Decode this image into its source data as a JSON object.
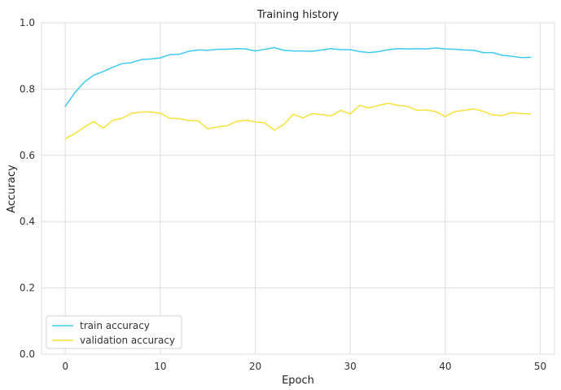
{
  "chart_data": {
    "type": "line",
    "title": "Training history",
    "xlabel": "Epoch",
    "ylabel": "Accuracy",
    "xlim": [
      -2.5,
      51.5
    ],
    "ylim": [
      0,
      1
    ],
    "xticks": [
      0,
      10,
      20,
      30,
      40,
      50
    ],
    "yticks": [
      0.0,
      0.2,
      0.4,
      0.6,
      0.8,
      1.0
    ],
    "ytick_labels": [
      "0.0",
      "0.2",
      "0.4",
      "0.6",
      "0.8",
      "1.0"
    ],
    "grid": true,
    "legend_position": "bottom-left",
    "x": [
      0,
      1,
      2,
      3,
      4,
      5,
      6,
      7,
      8,
      9,
      10,
      11,
      12,
      13,
      14,
      15,
      16,
      17,
      18,
      19,
      20,
      21,
      22,
      23,
      24,
      25,
      26,
      27,
      28,
      29,
      30,
      31,
      32,
      33,
      34,
      35,
      36,
      37,
      38,
      39,
      40,
      41,
      42,
      43,
      44,
      45,
      46,
      47,
      48,
      49
    ],
    "series": [
      {
        "name": "train accuracy",
        "color": "#3fcaf2",
        "values": [
          0.748,
          0.789,
          0.821,
          0.842,
          0.853,
          0.866,
          0.877,
          0.88,
          0.889,
          0.891,
          0.894,
          0.904,
          0.905,
          0.914,
          0.918,
          0.917,
          0.92,
          0.92,
          0.922,
          0.921,
          0.915,
          0.92,
          0.925,
          0.917,
          0.915,
          0.915,
          0.914,
          0.918,
          0.922,
          0.919,
          0.919,
          0.913,
          0.91,
          0.913,
          0.919,
          0.922,
          0.921,
          0.922,
          0.921,
          0.924,
          0.921,
          0.92,
          0.918,
          0.917,
          0.91,
          0.91,
          0.902,
          0.899,
          0.895,
          0.896
        ]
      },
      {
        "name": "validation accuracy",
        "color": "#f7e23b",
        "values": [
          0.65,
          0.666,
          0.685,
          0.702,
          0.682,
          0.706,
          0.712,
          0.727,
          0.731,
          0.731,
          0.727,
          0.712,
          0.711,
          0.705,
          0.704,
          0.68,
          0.686,
          0.689,
          0.702,
          0.706,
          0.701,
          0.698,
          0.676,
          0.693,
          0.724,
          0.713,
          0.726,
          0.723,
          0.719,
          0.736,
          0.725,
          0.751,
          0.743,
          0.751,
          0.757,
          0.751,
          0.748,
          0.736,
          0.737,
          0.732,
          0.717,
          0.732,
          0.736,
          0.74,
          0.733,
          0.722,
          0.72,
          0.729,
          0.726,
          0.725
        ]
      }
    ]
  }
}
